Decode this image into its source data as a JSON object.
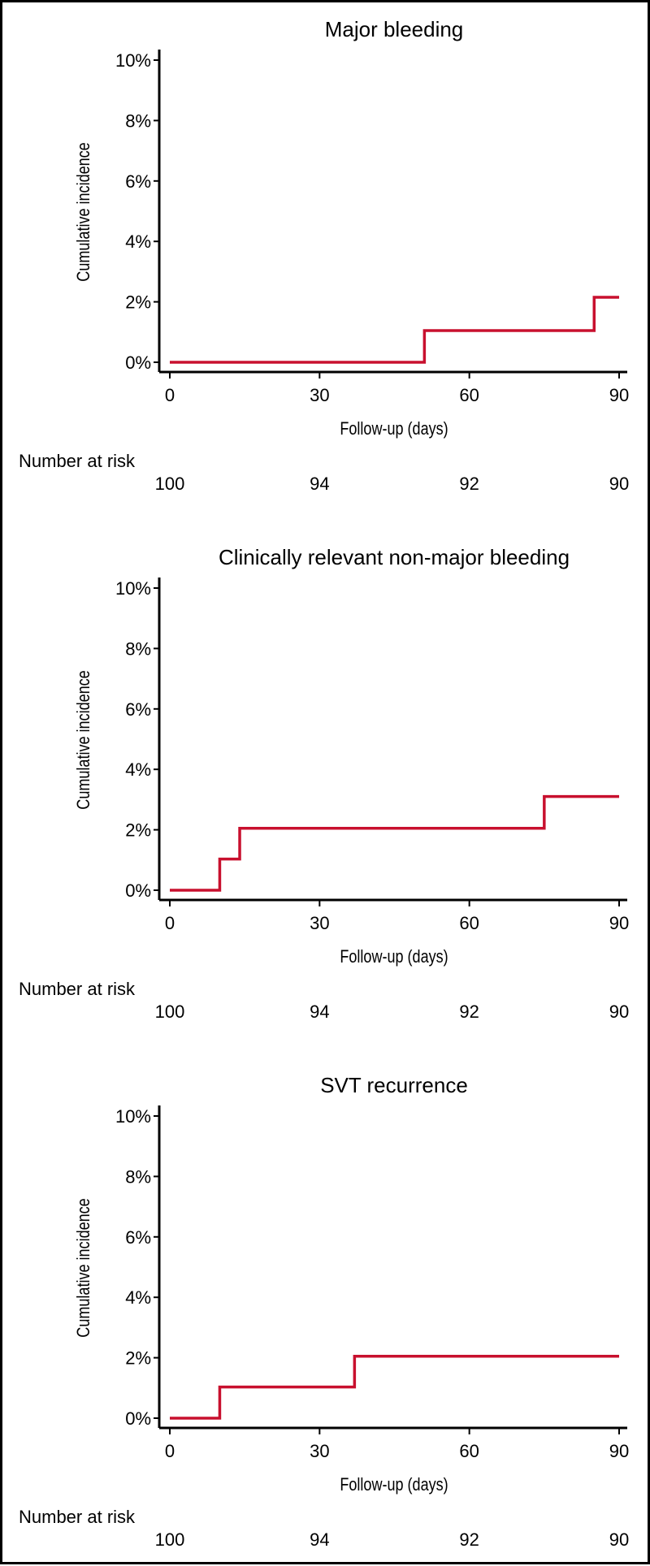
{
  "colors": {
    "line": "#c8102e",
    "axis": "#000000"
  },
  "chart_data": [
    {
      "type": "line",
      "step": true,
      "title": "Major bleeding",
      "xlabel": "Follow-up (days)",
      "ylabel": "Cumulative incidence",
      "xlim": [
        0,
        90
      ],
      "ylim": [
        0,
        10
      ],
      "x_ticks": [
        0,
        30,
        60,
        90
      ],
      "x_tick_labels": [
        "0",
        "30",
        "60",
        "90"
      ],
      "y_ticks": [
        0,
        2,
        4,
        6,
        8,
        10
      ],
      "y_tick_labels": [
        "0%",
        "2%",
        "4%",
        "6%",
        "8%",
        "10%"
      ],
      "series": [
        {
          "name": "Major bleeding",
          "x": [
            0,
            51,
            85,
            90
          ],
          "y": [
            0,
            1.05,
            2.15,
            2.15
          ]
        }
      ],
      "risk_label": "Number at risk",
      "risk_values": [
        "100",
        "94",
        "92",
        "90"
      ]
    },
    {
      "type": "line",
      "step": true,
      "title": "Clinically relevant non-major bleeding",
      "xlabel": "Follow-up (days)",
      "ylabel": "Cumulative incidence",
      "xlim": [
        0,
        90
      ],
      "ylim": [
        0,
        10
      ],
      "x_ticks": [
        0,
        30,
        60,
        90
      ],
      "x_tick_labels": [
        "0",
        "30",
        "60",
        "90"
      ],
      "y_ticks": [
        0,
        2,
        4,
        6,
        8,
        10
      ],
      "y_tick_labels": [
        "0%",
        "2%",
        "4%",
        "6%",
        "8%",
        "10%"
      ],
      "series": [
        {
          "name": "Clinically relevant non-major bleeding",
          "x": [
            0,
            10,
            14,
            75,
            90
          ],
          "y": [
            0,
            1.03,
            2.05,
            3.1,
            3.1
          ]
        }
      ],
      "risk_label": "Number at risk",
      "risk_values": [
        "100",
        "94",
        "92",
        "90"
      ]
    },
    {
      "type": "line",
      "step": true,
      "title": "SVT recurrence",
      "xlabel": "Follow-up (days)",
      "ylabel": "Cumulative incidence",
      "xlim": [
        0,
        90
      ],
      "ylim": [
        0,
        10
      ],
      "x_ticks": [
        0,
        30,
        60,
        90
      ],
      "x_tick_labels": [
        "0",
        "30",
        "60",
        "90"
      ],
      "y_ticks": [
        0,
        2,
        4,
        6,
        8,
        10
      ],
      "y_tick_labels": [
        "0%",
        "2%",
        "4%",
        "6%",
        "8%",
        "10%"
      ],
      "series": [
        {
          "name": "SVT recurrence",
          "x": [
            0,
            10,
            37,
            90
          ],
          "y": [
            0,
            1.03,
            2.05,
            2.05
          ]
        }
      ],
      "risk_label": "Number at risk",
      "risk_values": [
        "100",
        "94",
        "92",
        "90"
      ]
    }
  ]
}
